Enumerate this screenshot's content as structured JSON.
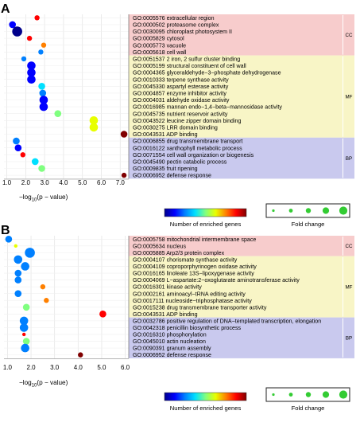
{
  "colors": {
    "cc_band": "#f7cccc",
    "mf_band": "#f8f5c6",
    "bp_band": "#c9c9ee",
    "colorbar": [
      "#00008b",
      "#0000ff",
      "#0080ff",
      "#00e0ff",
      "#80ff80",
      "#e8ff00",
      "#ff8000",
      "#ff0000",
      "#800000"
    ]
  },
  "legend": {
    "color_title": "Number of enriched genes",
    "size_title": "Fold change"
  },
  "chart_data": [
    {
      "panel_label": "A",
      "type": "scatter",
      "xlabel_prefix": "−log",
      "xlabel_sub": "10",
      "xlabel_suffix": "(p − value)",
      "x_ticks": [
        "1.0",
        "2.0",
        "3.0",
        "4.0",
        "5.0",
        "6.0",
        "7.0"
      ],
      "xlim": [
        0.85,
        7.45
      ],
      "categories": [
        {
          "label": "GO:0005576 extracellular region",
          "group": "CC",
          "x": 2.6,
          "size": 2,
          "color": 7
        },
        {
          "label": "GO:0000502 proteasome complex",
          "group": "CC",
          "x": 1.3,
          "size": 3,
          "color": 1
        },
        {
          "label": "GO:0030095 chloroplast photosystem II",
          "group": "CC",
          "x": 1.55,
          "size": 5,
          "color": 0
        },
        {
          "label": "GO:0005829 cytosol",
          "group": "CC",
          "x": 2.2,
          "size": 2,
          "color": 7
        },
        {
          "label": "GO:0005773 vacuole",
          "group": "CC",
          "x": 2.95,
          "size": 2,
          "color": 6
        },
        {
          "label": "GO:0005618 cell wall",
          "group": "CC",
          "x": 2.8,
          "size": 2,
          "color": 2
        },
        {
          "label": "GO:0051537 2 iron, 2 sulfur cluster binding",
          "group": "MF",
          "x": 1.9,
          "size": 2,
          "color": 2
        },
        {
          "label": "GO:0005199 structural constituent of cell wall",
          "group": "MF",
          "x": 2.3,
          "size": 4,
          "color": 1
        },
        {
          "label": "GO:0004365 glyceraldehyde−3−phosphate dehydrogenase",
          "group": "MF",
          "x": 2.3,
          "size": 4,
          "color": 1
        },
        {
          "label": "GO:0010333 terpene synthase activity",
          "group": "MF",
          "x": 2.3,
          "size": 4,
          "color": 1
        },
        {
          "label": "GO:0045330 aspartyl esterase activity",
          "group": "MF",
          "x": 2.85,
          "size": 3,
          "color": 3
        },
        {
          "label": "GO:0004857 enzyme inhibitor activity",
          "group": "MF",
          "x": 2.9,
          "size": 3,
          "color": 2
        },
        {
          "label": "GO:0004031 aldehyde oxidase activity",
          "group": "MF",
          "x": 2.95,
          "size": 4,
          "color": 1
        },
        {
          "label": "GO:0016985 mannan endo−1,4−beta−mannosidase activity",
          "group": "MF",
          "x": 2.95,
          "size": 4,
          "color": 1
        },
        {
          "label": "GO:0045735 nutrient reservoir activity",
          "group": "MF",
          "x": 3.7,
          "size": 3,
          "color": 4
        },
        {
          "label": "GO:0043522 leucine zipper domain binding",
          "group": "MF",
          "x": 5.6,
          "size": 4,
          "color": 5
        },
        {
          "label": "GO:0030275 LRR domain binding",
          "group": "MF",
          "x": 5.6,
          "size": 4,
          "color": 5
        },
        {
          "label": "GO:0043531 ADP binding",
          "group": "MF",
          "x": 7.2,
          "size": 3,
          "color": 8
        },
        {
          "label": "GO:0006855 drug transmembrane transport",
          "group": "BP",
          "x": 1.5,
          "size": 3,
          "color": 2
        },
        {
          "label": "GO:0016122 xanthophyll metabolic process",
          "group": "BP",
          "x": 1.6,
          "size": 3,
          "color": 1
        },
        {
          "label": "GO:0071554 cell wall organization or biogenesis",
          "group": "BP",
          "x": 1.85,
          "size": 2,
          "color": 7
        },
        {
          "label": "GO:0045490 pectin catabolic process",
          "group": "BP",
          "x": 2.5,
          "size": 3,
          "color": 3
        },
        {
          "label": "GO:0009835 fruit ripening",
          "group": "BP",
          "x": 2.85,
          "size": 3,
          "color": 4
        },
        {
          "label": "GO:0006952 defense response",
          "group": "BP",
          "x": 7.2,
          "size": 2,
          "color": 8
        }
      ]
    },
    {
      "panel_label": "B",
      "type": "scatter",
      "xlabel_prefix": "−log",
      "xlabel_sub": "10",
      "xlabel_suffix": "(p − value)",
      "x_ticks": [
        "1.0",
        "2.0",
        "3.0",
        "4.0",
        "5.0",
        "6.0"
      ],
      "xlim": [
        0.85,
        6.15
      ],
      "categories": [
        {
          "label": "GO:0005758 mitochondrial intermembrane space",
          "group": "CC",
          "x": 1.05,
          "size": 3,
          "color": 2
        },
        {
          "label": "GO:0005634 nucleus",
          "group": "CC",
          "x": 1.35,
          "size": 1,
          "color": 5
        },
        {
          "label": "GO:0005885 Arp2/3 protein complex",
          "group": "CC",
          "x": 1.95,
          "size": 5,
          "color": 2
        },
        {
          "label": "GO:0004107 chorismate synthase activity",
          "group": "MF",
          "x": 1.45,
          "size": 4,
          "color": 2
        },
        {
          "label": "GO:0004109 coproporphyrinogen oxidase activity",
          "group": "MF",
          "x": 1.75,
          "size": 4,
          "color": 2
        },
        {
          "label": "GO:0016165 linoleate 13S−lipoxygenase activity",
          "group": "MF",
          "x": 1.45,
          "size": 3,
          "color": 2
        },
        {
          "label": "GO:0004069 L−aspartate:2−oxoglutarate aminotransferase activity",
          "group": "MF",
          "x": 1.45,
          "size": 3,
          "color": 2
        },
        {
          "label": "GO:0016301 kinase activity",
          "group": "MF",
          "x": 2.5,
          "size": 2,
          "color": 6
        },
        {
          "label": "GO:0002161 aminoacyl−tRNA editing activity",
          "group": "MF",
          "x": 1.45,
          "size": 3,
          "color": 2
        },
        {
          "label": "GO:0017111 nucleoside−triphosphatase activity",
          "group": "MF",
          "x": 2.65,
          "size": 2,
          "color": 6
        },
        {
          "label": "GO:0015238 drug transmembrane transporter activity",
          "group": "MF",
          "x": 1.8,
          "size": 3,
          "color": 4
        },
        {
          "label": "GO:0043531 ADP binding",
          "group": "MF",
          "x": 5.05,
          "size": 3,
          "color": 7
        },
        {
          "label": "GO:0032786 positive regulation of DNA−templated transcription, elongation",
          "group": "BP",
          "x": 1.7,
          "size": 4,
          "color": 2
        },
        {
          "label": "GO:0042318 penicillin biosynthetic process",
          "group": "BP",
          "x": 1.7,
          "size": 4,
          "color": 2
        },
        {
          "label": "GO:0016310 phosphorylation",
          "group": "BP",
          "x": 1.7,
          "size": 1,
          "color": 7
        },
        {
          "label": "GO:0045010 actin nucleation",
          "group": "BP",
          "x": 1.8,
          "size": 3,
          "color": 4
        },
        {
          "label": "GO:0090391 granum assembly",
          "group": "BP",
          "x": 1.75,
          "size": 4,
          "color": 2
        },
        {
          "label": "GO:0006952 defense response",
          "group": "BP",
          "x": 4.1,
          "size": 2,
          "color": 8
        }
      ]
    }
  ]
}
